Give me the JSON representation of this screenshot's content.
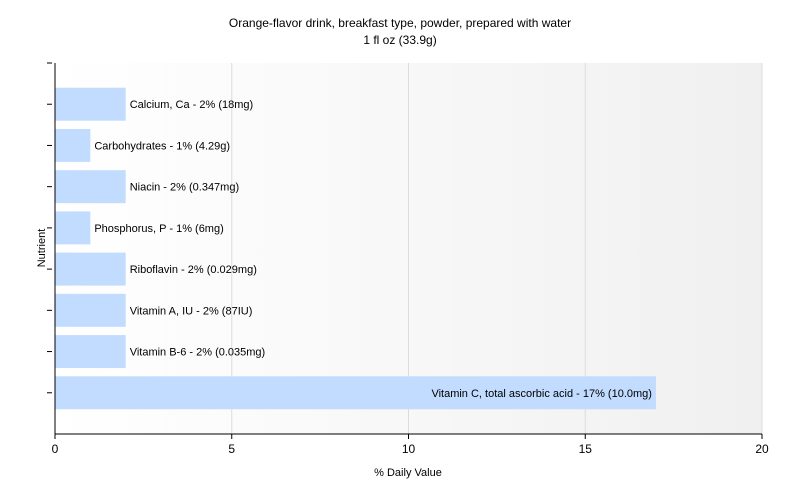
{
  "chart_data": {
    "type": "bar",
    "orientation": "horizontal",
    "title": "Orange-flavor drink, breakfast type, powder, prepared with water",
    "subtitle": "1 fl oz (33.9g)",
    "xlabel": "% Daily Value",
    "ylabel": "Nutrient",
    "xlim": [
      0,
      20
    ],
    "xticks": [
      0,
      5,
      10,
      15,
      20
    ],
    "grid": true,
    "bar_color": "#c2dcff",
    "bars": [
      {
        "category": "Calcium, Ca",
        "value": 2,
        "label": "Calcium, Ca - 2% (18mg)"
      },
      {
        "category": "Carbohydrates",
        "value": 1,
        "label": "Carbohydrates - 1% (4.29g)"
      },
      {
        "category": "Niacin",
        "value": 2,
        "label": "Niacin - 2% (0.347mg)"
      },
      {
        "category": "Phosphorus, P",
        "value": 1,
        "label": "Phosphorus, P - 1% (6mg)"
      },
      {
        "category": "Riboflavin",
        "value": 2,
        "label": "Riboflavin - 2% (0.029mg)"
      },
      {
        "category": "Vitamin A, IU",
        "value": 2,
        "label": "Vitamin A, IU - 2% (87IU)"
      },
      {
        "category": "Vitamin B-6",
        "value": 2,
        "label": "Vitamin B-6 - 2% (0.035mg)"
      },
      {
        "category": "Vitamin C, total ascorbic acid",
        "value": 17,
        "label": "Vitamin C, total ascorbic acid - 17% (10.0mg)"
      }
    ]
  }
}
